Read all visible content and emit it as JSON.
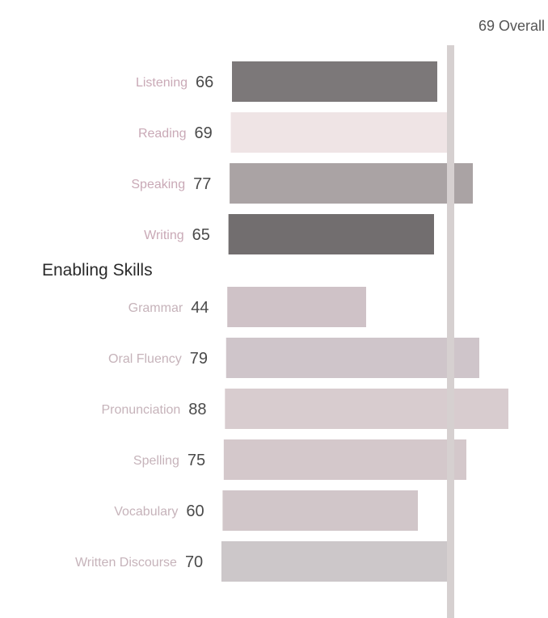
{
  "chart_data": {
    "type": "bar",
    "orientation": "horizontal",
    "overall": {
      "value": 69,
      "label": "Overall",
      "line_color": "#d6d0d0"
    },
    "groups": [
      {
        "title": "",
        "label_color": "#c9a9b6",
        "items": [
          {
            "label": "Listening",
            "value": 66,
            "color": "#7c7879"
          },
          {
            "label": "Reading",
            "value": 69,
            "color": "#efe4e5"
          },
          {
            "label": "Speaking",
            "value": 77,
            "color": "#aaa3a4"
          },
          {
            "label": "Writing",
            "value": 65,
            "color": "#726e6f"
          }
        ]
      },
      {
        "title": "Enabling Skills",
        "label_color": "#c6b3ba",
        "items": [
          {
            "label": "Grammar",
            "value": 44,
            "color": "#cfc2c7"
          },
          {
            "label": "Oral Fluency",
            "value": 79,
            "color": "#cfc5ca"
          },
          {
            "label": "Pronunciation",
            "value": 88,
            "color": "#d8cccf"
          },
          {
            "label": "Spelling",
            "value": 75,
            "color": "#d4c8cb"
          },
          {
            "label": "Vocabulary",
            "value": 60,
            "color": "#d1c6c9"
          },
          {
            "label": "Written Discourse",
            "value": 70,
            "color": "#ccc7c9"
          }
        ]
      }
    ]
  }
}
